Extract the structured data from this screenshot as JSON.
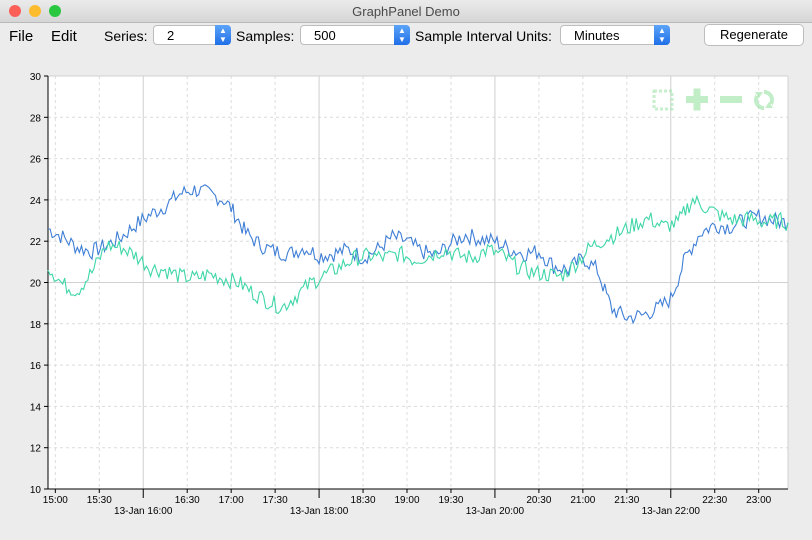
{
  "window": {
    "title": "GraphPanel Demo"
  },
  "menu": {
    "file": "File",
    "edit": "Edit"
  },
  "toolbar": {
    "series_label": "Series:",
    "series_value": "2",
    "samples_label": "Samples:",
    "samples_value": "500",
    "interval_label": "Sample Interval Units:",
    "interval_value": "Minutes",
    "regenerate_label": "Regenerate"
  },
  "graph_toolbar_icons": [
    "zoom-box-icon",
    "zoom-in-icon",
    "zoom-out-icon",
    "reset-icon"
  ],
  "colors": {
    "series_1": "#3f7fd6",
    "series_2": "#3fd6a8",
    "close": "#fc5f57",
    "minimize": "#fdbc2e",
    "zoom": "#29c840"
  },
  "chart_data": {
    "type": "line",
    "ylim": [
      10,
      30
    ],
    "yticks": [
      "10",
      "12",
      "14",
      "16",
      "18",
      "20",
      "22",
      "24",
      "26",
      "28",
      "30"
    ],
    "x_range": [
      "2018-01-13 14:55",
      "2018-01-13 23:20"
    ],
    "xticks_minor": [
      "15:00",
      "15:30",
      "16:30",
      "17:00",
      "17:30",
      "18:30",
      "19:00",
      "19:30",
      "20:30",
      "21:00",
      "21:30",
      "22:30",
      "23:00"
    ],
    "xticks_major": [
      "13-Jan 16:00",
      "13-Jan 18:00",
      "13-Jan 20:00",
      "13-Jan 22:00"
    ],
    "series": [
      {
        "color": "#3f7fd6",
        "points": [
          [
            "14:55",
            22.6
          ],
          [
            "15:05",
            22.2
          ],
          [
            "15:15",
            21.7
          ],
          [
            "15:25",
            21.5
          ],
          [
            "15:35",
            21.8
          ],
          [
            "15:45",
            22.2
          ],
          [
            "15:55",
            22.8
          ],
          [
            "16:05",
            23.3
          ],
          [
            "16:15",
            23.7
          ],
          [
            "16:25",
            24.3
          ],
          [
            "16:35",
            24.5
          ],
          [
            "16:45",
            24.3
          ],
          [
            "16:55",
            24.0
          ],
          [
            "17:00",
            23.6
          ],
          [
            "17:05",
            23.0
          ],
          [
            "17:10",
            22.4
          ],
          [
            "17:20",
            21.8
          ],
          [
            "17:30",
            21.5
          ],
          [
            "17:40",
            21.4
          ],
          [
            "17:50",
            21.7
          ],
          [
            "18:00",
            21.3
          ],
          [
            "18:10",
            21.4
          ],
          [
            "18:20",
            21.6
          ],
          [
            "18:30",
            21.2
          ],
          [
            "18:40",
            21.6
          ],
          [
            "18:50",
            22.2
          ],
          [
            "19:00",
            22.0
          ],
          [
            "19:10",
            21.5
          ],
          [
            "19:20",
            21.3
          ],
          [
            "19:30",
            21.9
          ],
          [
            "19:40",
            22.3
          ],
          [
            "19:50",
            22.1
          ],
          [
            "20:00",
            22.0
          ],
          [
            "20:10",
            21.6
          ],
          [
            "20:20",
            21.4
          ],
          [
            "20:30",
            21.5
          ],
          [
            "20:40",
            20.8
          ],
          [
            "20:50",
            20.6
          ],
          [
            "21:00",
            21.2
          ],
          [
            "21:10",
            20.6
          ],
          [
            "21:15",
            19.6
          ],
          [
            "21:20",
            18.7
          ],
          [
            "21:30",
            18.3
          ],
          [
            "21:40",
            18.4
          ],
          [
            "21:50",
            18.7
          ],
          [
            "22:00",
            19.2
          ],
          [
            "22:05",
            20.2
          ],
          [
            "22:10",
            21.2
          ],
          [
            "22:20",
            22.4
          ],
          [
            "22:30",
            22.8
          ],
          [
            "22:40",
            22.7
          ],
          [
            "22:50",
            23.0
          ],
          [
            "23:00",
            23.2
          ],
          [
            "23:10",
            23.0
          ],
          [
            "23:20",
            22.9
          ]
        ]
      },
      {
        "color": "#3fd6a8",
        "points": [
          [
            "14:55",
            20.8
          ],
          [
            "15:05",
            19.9
          ],
          [
            "15:15",
            19.6
          ],
          [
            "15:25",
            20.5
          ],
          [
            "15:35",
            21.8
          ],
          [
            "15:45",
            21.7
          ],
          [
            "15:55",
            21.3
          ],
          [
            "16:05",
            20.7
          ],
          [
            "16:15",
            20.6
          ],
          [
            "16:25",
            20.3
          ],
          [
            "16:35",
            20.2
          ],
          [
            "16:45",
            20.4
          ],
          [
            "16:55",
            20.2
          ],
          [
            "17:05",
            20.0
          ],
          [
            "17:15",
            19.5
          ],
          [
            "17:25",
            19.1
          ],
          [
            "17:35",
            18.8
          ],
          [
            "17:45",
            19.4
          ],
          [
            "17:55",
            20.0
          ],
          [
            "18:05",
            20.4
          ],
          [
            "18:15",
            20.8
          ],
          [
            "18:25",
            21.2
          ],
          [
            "18:35",
            21.3
          ],
          [
            "18:45",
            21.2
          ],
          [
            "18:55",
            21.4
          ],
          [
            "19:05",
            21.1
          ],
          [
            "19:15",
            21.3
          ],
          [
            "19:25",
            21.6
          ],
          [
            "19:35",
            21.3
          ],
          [
            "19:45",
            21.2
          ],
          [
            "19:55",
            21.6
          ],
          [
            "20:05",
            21.3
          ],
          [
            "20:15",
            20.8
          ],
          [
            "20:25",
            20.5
          ],
          [
            "20:35",
            20.4
          ],
          [
            "20:45",
            20.3
          ],
          [
            "20:55",
            20.9
          ],
          [
            "21:05",
            21.7
          ],
          [
            "21:15",
            22.1
          ],
          [
            "21:25",
            22.4
          ],
          [
            "21:35",
            22.8
          ],
          [
            "21:45",
            23.1
          ],
          [
            "21:55",
            22.7
          ],
          [
            "22:05",
            22.9
          ],
          [
            "22:10",
            23.5
          ],
          [
            "22:15",
            24.0
          ],
          [
            "22:25",
            23.6
          ],
          [
            "22:35",
            23.2
          ],
          [
            "22:45",
            23.0
          ],
          [
            "22:55",
            23.1
          ],
          [
            "23:05",
            22.9
          ],
          [
            "23:15",
            23.0
          ],
          [
            "23:20",
            22.9
          ]
        ]
      }
    ]
  }
}
